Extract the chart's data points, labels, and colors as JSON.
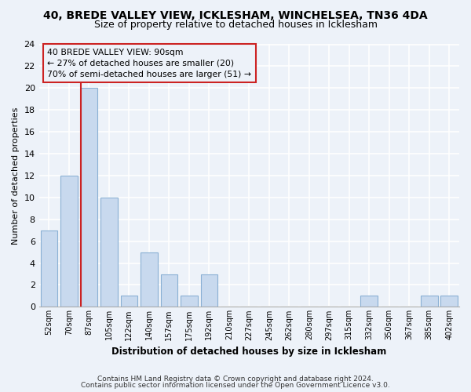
{
  "title1": "40, BREDE VALLEY VIEW, ICKLESHAM, WINCHELSEA, TN36 4DA",
  "title2": "Size of property relative to detached houses in Icklesham",
  "xlabel": "Distribution of detached houses by size in Icklesham",
  "ylabel": "Number of detached properties",
  "bin_labels": [
    "52sqm",
    "70sqm",
    "87sqm",
    "105sqm",
    "122sqm",
    "140sqm",
    "157sqm",
    "175sqm",
    "192sqm",
    "210sqm",
    "227sqm",
    "245sqm",
    "262sqm",
    "280sqm",
    "297sqm",
    "315sqm",
    "332sqm",
    "350sqm",
    "367sqm",
    "385sqm",
    "402sqm"
  ],
  "bar_heights": [
    7,
    12,
    20,
    10,
    1,
    5,
    3,
    1,
    3,
    0,
    0,
    0,
    0,
    0,
    0,
    0,
    1,
    0,
    0,
    1,
    1
  ],
  "bar_color": "#c8d9ee",
  "bar_edge_color": "#8ab0d4",
  "highlight_bar_index": 2,
  "vline_color": "#cc2222",
  "annotation_title": "40 BREDE VALLEY VIEW: 90sqm",
  "annotation_line1": "← 27% of detached houses are smaller (20)",
  "annotation_line2": "70% of semi-detached houses are larger (51) →",
  "annotation_box_edge_color": "#cc2222",
  "ylim": [
    0,
    24
  ],
  "yticks": [
    0,
    2,
    4,
    6,
    8,
    10,
    12,
    14,
    16,
    18,
    20,
    22,
    24
  ],
  "footer1": "Contains HM Land Registry data © Crown copyright and database right 2024.",
  "footer2": "Contains public sector information licensed under the Open Government Licence v3.0.",
  "bg_color": "#edf2f9",
  "grid_color": "#ffffff"
}
